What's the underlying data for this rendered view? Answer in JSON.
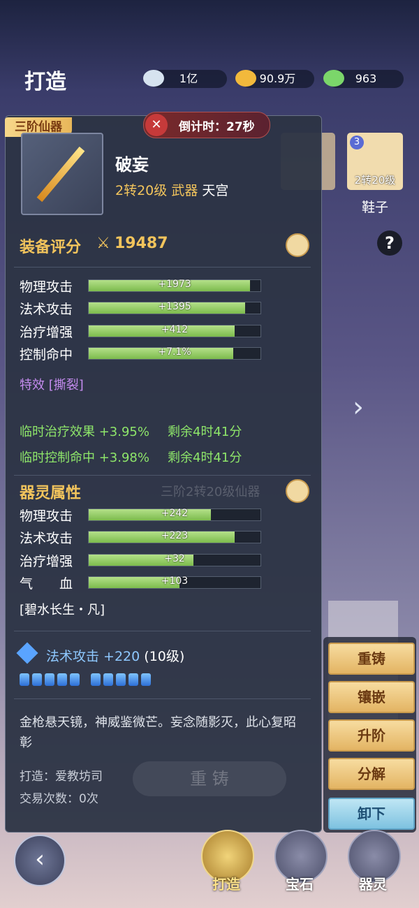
{
  "header": {
    "title": "打造",
    "currencies": [
      "1亿",
      "90.9万",
      "963"
    ]
  },
  "timer": "倒计时：27秒",
  "item": {
    "badge": "三阶仙器",
    "name": "破妄",
    "level": "2转20级",
    "kind": "武器",
    "origin": "天宫"
  },
  "background_slot": {
    "star": "3",
    "level": "2转20级",
    "name": "鞋子"
  },
  "background_texts": [
    "三阶2转20级仙器",
    "重 铸"
  ],
  "score": {
    "label": "装备评分",
    "value": "19487"
  },
  "stats": [
    {
      "label": "物理攻击",
      "value": "+1973"
    },
    {
      "label": "法术攻击",
      "value": "+1395"
    },
    {
      "label": "治疗增强",
      "value": "+412"
    },
    {
      "label": "控制命中",
      "value": "+7.1%"
    }
  ],
  "special": "特效 [撕裂]",
  "temp_buffs": [
    {
      "effect": "临时治疗效果 +3.95%",
      "remaining": "剩余4时41分"
    },
    {
      "effect": "临时控制命中 +3.98%",
      "remaining": "剩余4时41分"
    }
  ],
  "spirit": {
    "title": "器灵属性",
    "stats": [
      {
        "label": "物理攻击",
        "value": "+242"
      },
      {
        "label": "法术攻击",
        "value": "+223"
      },
      {
        "label": "治疗增强",
        "value": "+32"
      },
      {
        "label": "气　　血",
        "value": "+103"
      }
    ],
    "set": "[碧水长生・凡]"
  },
  "gem": {
    "label": "法术攻击 +220",
    "level": "(10级)"
  },
  "description": "金枪悬天镜，神威鉴微芒。妄念随影灭，此心复昭彰",
  "forged_by": "打造：爱教坊司",
  "trades": "交易次数：0次",
  "buttons": [
    "重铸",
    "镶嵌",
    "升阶",
    "分解",
    "卸下"
  ],
  "tabs": [
    "打造",
    "宝石",
    "器灵"
  ]
}
